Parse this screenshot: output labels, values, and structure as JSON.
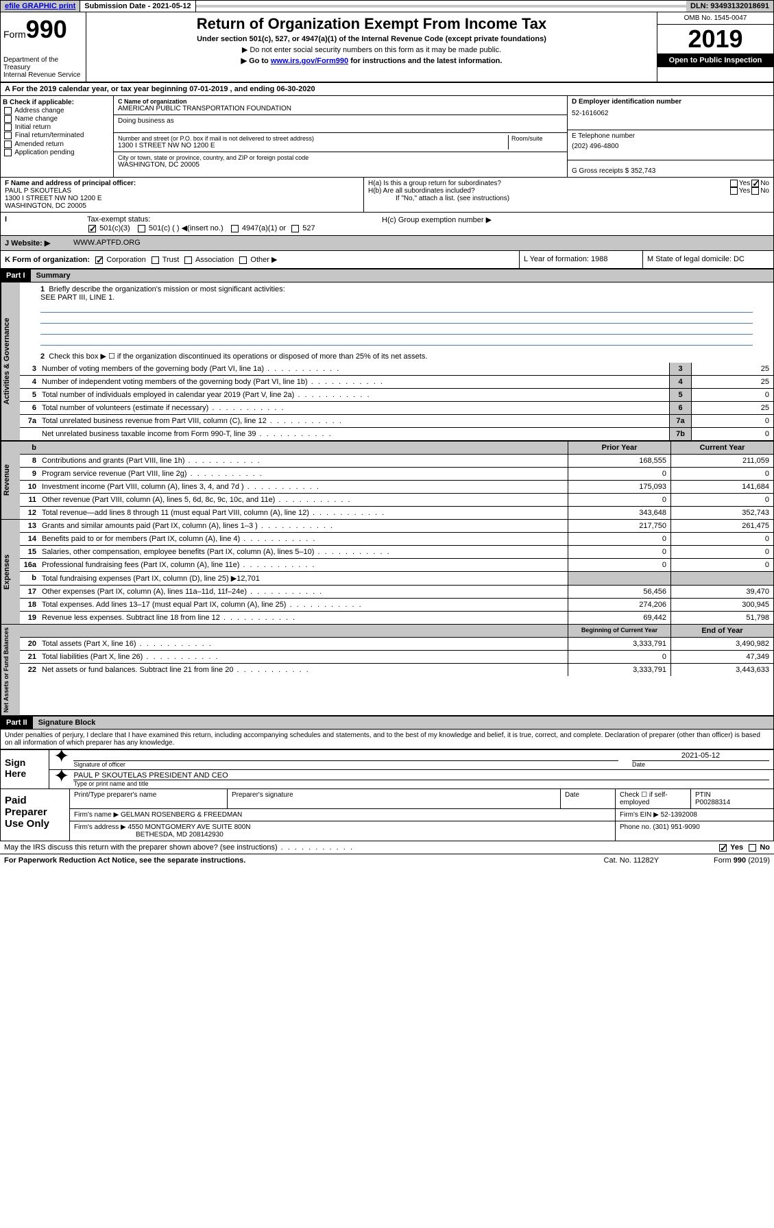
{
  "topbar": {
    "efile": "efile GRAPHIC print",
    "sub_label": "Submission Date - 2021-05-12",
    "dln": "DLN: 93493132018691"
  },
  "header": {
    "form_prefix": "Form",
    "form_num": "990",
    "dept": "Department of the Treasury",
    "irs": "Internal Revenue Service",
    "title": "Return of Organization Exempt From Income Tax",
    "subtitle": "Under section 501(c), 527, or 4947(a)(1) of the Internal Revenue Code (except private foundations)",
    "note1": "▶ Do not enter social security numbers on this form as it may be made public.",
    "note2_pre": "▶ Go to ",
    "note2_link": "www.irs.gov/Form990",
    "note2_post": " for instructions and the latest information.",
    "omb": "OMB No. 1545-0047",
    "year": "2019",
    "badge": "Open to Public Inspection"
  },
  "lineA": "A For the 2019 calendar year, or tax year beginning 07-01-2019    , and ending 06-30-2020",
  "boxB": {
    "title": "B Check if applicable:",
    "opts": [
      "Address change",
      "Name change",
      "Initial return",
      "Final return/terminated",
      "Amended return",
      "Application pending"
    ]
  },
  "boxC": {
    "name_label": "C Name of organization",
    "name": "AMERICAN PUBLIC TRANSPORTATION FOUNDATION",
    "dba": "Doing business as",
    "street_label": "Number and street (or P.O. box if mail is not delivered to street address)",
    "room": "Room/suite",
    "street": "1300 I STREET NW NO 1200 E",
    "city_label": "City or town, state or province, country, and ZIP or foreign postal code",
    "city": "WASHINGTON, DC  20005"
  },
  "boxD": {
    "label": "D Employer identification number",
    "val": "52-1616062"
  },
  "boxE": {
    "label": "E Telephone number",
    "val": "(202) 496-4800"
  },
  "boxG": {
    "label": "G Gross receipts $ 352,743"
  },
  "boxF": {
    "label": "F  Name and address of principal officer:",
    "name": "PAUL P SKOUTELAS",
    "addr1": "1300 I STREET NW NO 1200 E",
    "addr2": "WASHINGTON, DC  20005"
  },
  "boxH": {
    "a": "H(a)  Is this a group return for subordinates?",
    "b": "H(b)  Are all subordinates included?",
    "note": "If \"No,\" attach a list. (see instructions)",
    "c": "H(c)  Group exemption number ▶",
    "yes": "Yes",
    "no": "No"
  },
  "taxI": {
    "label": "Tax-exempt status:",
    "o1": "501(c)(3)",
    "o2": "501(c) (  ) ◀(insert no.)",
    "o3": "4947(a)(1) or",
    "o4": "527"
  },
  "rowJ": {
    "label": "J Website: ▶",
    "val": "WWW.APTFD.ORG"
  },
  "rowK": {
    "label": "K Form of organization:",
    "o1": "Corporation",
    "o2": "Trust",
    "o3": "Association",
    "o4": "Other ▶",
    "L": "L Year of formation: 1988",
    "M": "M State of legal domicile: DC"
  },
  "part1": {
    "hdr": "Part I",
    "title": "Summary",
    "l1": "Briefly describe the organization's mission or most significant activities:",
    "l1v": "SEE PART III, LINE 1.",
    "l2": "Check this box ▶ ☐  if the organization discontinued its operations or disposed of more than 25% of its net assets.",
    "vtab1": "Activities & Governance",
    "vtab2": "Revenue",
    "vtab3": "Expenses",
    "vtab4": "Net Assets or Fund Balances",
    "rows_gov": [
      {
        "n": "3",
        "t": "Number of voting members of the governing body (Part VI, line 1a)",
        "b": "3",
        "v": "25"
      },
      {
        "n": "4",
        "t": "Number of independent voting members of the governing body (Part VI, line 1b)",
        "b": "4",
        "v": "25"
      },
      {
        "n": "5",
        "t": "Total number of individuals employed in calendar year 2019 (Part V, line 2a)",
        "b": "5",
        "v": "0"
      },
      {
        "n": "6",
        "t": "Total number of volunteers (estimate if necessary)",
        "b": "6",
        "v": "25"
      },
      {
        "n": "7a",
        "t": "Total unrelated business revenue from Part VIII, column (C), line 12",
        "b": "7a",
        "v": "0"
      },
      {
        "n": "",
        "t": "Net unrelated business taxable income from Form 990-T, line 39",
        "b": "7b",
        "v": "0"
      }
    ],
    "hdr_prior": "Prior Year",
    "hdr_curr": "Current Year",
    "hdr_begin": "Beginning of Current Year",
    "hdr_end": "End of Year",
    "rows_rev": [
      {
        "n": "8",
        "t": "Contributions and grants (Part VIII, line 1h)",
        "p": "168,555",
        "c": "211,059"
      },
      {
        "n": "9",
        "t": "Program service revenue (Part VIII, line 2g)",
        "p": "0",
        "c": "0"
      },
      {
        "n": "10",
        "t": "Investment income (Part VIII, column (A), lines 3, 4, and 7d )",
        "p": "175,093",
        "c": "141,684"
      },
      {
        "n": "11",
        "t": "Other revenue (Part VIII, column (A), lines 5, 6d, 8c, 9c, 10c, and 11e)",
        "p": "0",
        "c": "0"
      },
      {
        "n": "12",
        "t": "Total revenue—add lines 8 through 11 (must equal Part VIII, column (A), line 12)",
        "p": "343,648",
        "c": "352,743"
      }
    ],
    "rows_exp": [
      {
        "n": "13",
        "t": "Grants and similar amounts paid (Part IX, column (A), lines 1–3 )",
        "p": "217,750",
        "c": "261,475"
      },
      {
        "n": "14",
        "t": "Benefits paid to or for members (Part IX, column (A), line 4)",
        "p": "0",
        "c": "0"
      },
      {
        "n": "15",
        "t": "Salaries, other compensation, employee benefits (Part IX, column (A), lines 5–10)",
        "p": "0",
        "c": "0"
      },
      {
        "n": "16a",
        "t": "Professional fundraising fees (Part IX, column (A), line 11e)",
        "p": "0",
        "c": "0"
      },
      {
        "n": "b",
        "t": "Total fundraising expenses (Part IX, column (D), line 25) ▶12,701",
        "p": "",
        "c": "",
        "shade": true
      },
      {
        "n": "17",
        "t": "Other expenses (Part IX, column (A), lines 11a–11d, 11f–24e)",
        "p": "56,456",
        "c": "39,470"
      },
      {
        "n": "18",
        "t": "Total expenses. Add lines 13–17 (must equal Part IX, column (A), line 25)",
        "p": "274,206",
        "c": "300,945"
      },
      {
        "n": "19",
        "t": "Revenue less expenses. Subtract line 18 from line 12",
        "p": "69,442",
        "c": "51,798"
      }
    ],
    "rows_net": [
      {
        "n": "20",
        "t": "Total assets (Part X, line 16)",
        "p": "3,333,791",
        "c": "3,490,982"
      },
      {
        "n": "21",
        "t": "Total liabilities (Part X, line 26)",
        "p": "0",
        "c": "47,349"
      },
      {
        "n": "22",
        "t": "Net assets or fund balances. Subtract line 21 from line 20",
        "p": "3,333,791",
        "c": "3,443,633"
      }
    ]
  },
  "part2": {
    "hdr": "Part II",
    "title": "Signature Block",
    "perjury": "Under penalties of perjury, I declare that I have examined this return, including accompanying schedules and statements, and to the best of my knowledge and belief, it is true, correct, and complete. Declaration of preparer (other than officer) is based on all information of which preparer has any knowledge."
  },
  "sign": {
    "left1": "Sign",
    "left2": "Here",
    "sig_label": "Signature of officer",
    "date": "2021-05-12",
    "date_label": "Date",
    "name": "PAUL P SKOUTELAS  PRESIDENT AND CEO",
    "name_label": "Type or print name and title"
  },
  "paid": {
    "left1": "Paid",
    "left2": "Preparer",
    "left3": "Use Only",
    "h1": "Print/Type preparer's name",
    "h2": "Preparer's signature",
    "h3": "Date",
    "h4a": "Check ☐ if self-employed",
    "h4b": "PTIN",
    "ptin": "P00288314",
    "firm_label": "Firm's name     ▶",
    "firm": "GELMAN ROSENBERG & FREEDMAN",
    "ein_label": "Firm's EIN ▶",
    "ein": "52-1392008",
    "addr_label": "Firm's address ▶",
    "addr1": "4550 MONTGOMERY AVE SUITE 800N",
    "addr2": "BETHESDA, MD  208142930",
    "phone_label": "Phone no.",
    "phone": "(301) 951-9090"
  },
  "discuss": "May the IRS discuss this return with the preparer shown above? (see instructions)",
  "footer": {
    "l": "For Paperwork Reduction Act Notice, see the separate instructions.",
    "m": "Cat. No. 11282Y",
    "r": "Form 990 (2019)"
  }
}
